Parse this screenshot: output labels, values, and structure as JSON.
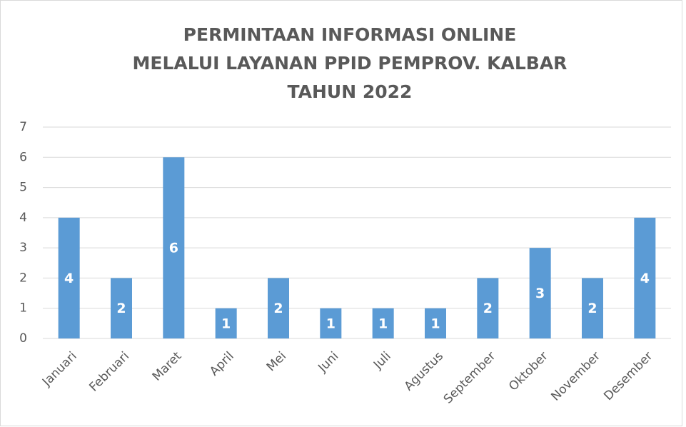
{
  "chart_data": {
    "type": "bar",
    "title": [
      "PERMINTAAN INFORMASI ONLINE",
      "MELALUI LAYANAN PPID PEMPROV. KALBAR",
      "TAHUN 2022"
    ],
    "categories": [
      "Januari",
      "Februari",
      "Maret",
      "April",
      "Mei",
      "Juni",
      "Juli",
      "Agustus",
      "September",
      "Oktober",
      "November",
      "Desember"
    ],
    "values": [
      4,
      2,
      6,
      1,
      2,
      1,
      1,
      1,
      2,
      3,
      2,
      4
    ],
    "color": "#5b9bd5",
    "ylim": [
      0,
      7
    ],
    "yticks": [
      0,
      1,
      2,
      3,
      4,
      5,
      6,
      7
    ],
    "grid": true
  }
}
